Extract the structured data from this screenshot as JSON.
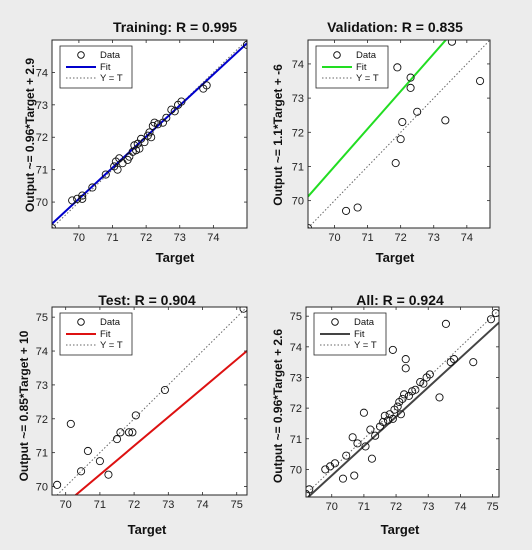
{
  "chart_data": [
    {
      "type": "scatter",
      "title": "Training:  R = 0.995",
      "xlabel": "Target",
      "ylabel": "Output ~= 0.96*Target + 2.9",
      "xlim": [
        69.2,
        75.0
      ],
      "ylim": [
        69.2,
        75.0
      ],
      "xticks": [
        "70",
        "71",
        "72",
        "73",
        "74"
      ],
      "yticks": [
        "70",
        "71",
        "72",
        "73",
        "74"
      ],
      "grid": false,
      "legend_position": "top-left",
      "legend": [
        "Data",
        "Fit",
        "Y = T"
      ],
      "fit": {
        "slope": 0.96,
        "intercept": 2.9,
        "color": "#0000cc"
      },
      "points": [
        [
          69.2,
          69.2
        ],
        [
          69.8,
          70.05
        ],
        [
          69.95,
          70.1
        ],
        [
          70.1,
          70.2
        ],
        [
          70.1,
          70.1
        ],
        [
          70.4,
          70.45
        ],
        [
          70.8,
          70.85
        ],
        [
          71.05,
          71.1
        ],
        [
          71.1,
          71.25
        ],
        [
          71.15,
          71.0
        ],
        [
          71.2,
          71.35
        ],
        [
          71.3,
          71.2
        ],
        [
          71.45,
          71.3
        ],
        [
          71.5,
          71.4
        ],
        [
          71.6,
          71.55
        ],
        [
          71.65,
          71.75
        ],
        [
          71.7,
          71.6
        ],
        [
          71.75,
          71.8
        ],
        [
          71.8,
          71.65
        ],
        [
          71.85,
          71.95
        ],
        [
          71.95,
          71.85
        ],
        [
          72.05,
          72.05
        ],
        [
          72.1,
          72.15
        ],
        [
          72.15,
          72.0
        ],
        [
          72.2,
          72.35
        ],
        [
          72.25,
          72.45
        ],
        [
          72.35,
          72.4
        ],
        [
          72.5,
          72.45
        ],
        [
          72.6,
          72.6
        ],
        [
          72.75,
          72.85
        ],
        [
          72.85,
          72.8
        ],
        [
          72.95,
          73.0
        ],
        [
          73.05,
          73.1
        ],
        [
          73.7,
          73.5
        ],
        [
          73.8,
          73.6
        ],
        [
          75.0,
          74.85
        ]
      ]
    },
    {
      "type": "scatter",
      "title": "Validation:  R = 0.835",
      "xlabel": "Target",
      "ylabel": "Output ~= 1.1*Target + -6",
      "xlim": [
        69.2,
        74.7
      ],
      "ylim": [
        69.2,
        74.7
      ],
      "xticks": [
        "70",
        "71",
        "72",
        "73",
        "74"
      ],
      "yticks": [
        "70",
        "71",
        "72",
        "73",
        "74"
      ],
      "grid": false,
      "legend_position": "top-left",
      "legend": [
        "Data",
        "Fit",
        "Y = T"
      ],
      "fit": {
        "slope": 1.1,
        "intercept": -6,
        "color": "#22dd22"
      },
      "points": [
        [
          69.2,
          69.2
        ],
        [
          70.35,
          69.7
        ],
        [
          70.7,
          69.8
        ],
        [
          71.85,
          71.1
        ],
        [
          72.0,
          71.8
        ],
        [
          72.05,
          72.3
        ],
        [
          72.3,
          73.3
        ],
        [
          72.3,
          73.6
        ],
        [
          72.5,
          72.6
        ],
        [
          71.9,
          73.9
        ],
        [
          73.35,
          72.35
        ],
        [
          73.55,
          74.65
        ],
        [
          74.4,
          73.5
        ]
      ]
    },
    {
      "type": "scatter",
      "title": "Test:  R = 0.904",
      "xlabel": "Target",
      "ylabel": "Output ~= 0.85*Target + 10",
      "xlim": [
        69.6,
        75.3
      ],
      "ylim": [
        69.75,
        75.3
      ],
      "xticks": [
        "70",
        "71",
        "72",
        "73",
        "74",
        "75"
      ],
      "yticks": [
        "70",
        "71",
        "72",
        "73",
        "74",
        "75"
      ],
      "grid": false,
      "legend_position": "top-left",
      "legend": [
        "Data",
        "Fit",
        "Y = T"
      ],
      "fit": {
        "slope": 0.85,
        "intercept": 10,
        "color": "#dd1111"
      },
      "points": [
        [
          69.75,
          70.05
        ],
        [
          70.15,
          71.85
        ],
        [
          70.45,
          70.45
        ],
        [
          70.65,
          71.05
        ],
        [
          71.0,
          70.75
        ],
        [
          71.25,
          70.35
        ],
        [
          71.5,
          71.4
        ],
        [
          71.6,
          71.6
        ],
        [
          71.85,
          71.6
        ],
        [
          71.95,
          71.6
        ],
        [
          72.05,
          72.1
        ],
        [
          72.9,
          72.85
        ],
        [
          75.2,
          75.25
        ]
      ]
    },
    {
      "type": "scatter",
      "title": "All:  R = 0.924",
      "xlabel": "Target",
      "ylabel": "Output ~= 0.96*Target + 2.6",
      "xlim": [
        69.2,
        75.2
      ],
      "ylim": [
        69.1,
        75.3
      ],
      "xticks": [
        "70",
        "71",
        "72",
        "73",
        "74",
        "75"
      ],
      "yticks": [
        "70",
        "71",
        "72",
        "73",
        "74",
        "75"
      ],
      "grid": false,
      "legend_position": "top-left",
      "legend": [
        "Data",
        "Fit",
        "Y = T"
      ],
      "fit": {
        "slope": 0.96,
        "intercept": 2.6,
        "color": "#444444"
      },
      "points": [
        [
          69.2,
          69.2
        ],
        [
          69.3,
          69.35
        ],
        [
          69.8,
          70.0
        ],
        [
          69.95,
          70.1
        ],
        [
          70.1,
          70.2
        ],
        [
          70.35,
          69.7
        ],
        [
          70.45,
          70.45
        ],
        [
          70.7,
          69.8
        ],
        [
          70.65,
          71.05
        ],
        [
          70.8,
          70.85
        ],
        [
          71.0,
          71.85
        ],
        [
          71.05,
          70.75
        ],
        [
          71.2,
          71.3
        ],
        [
          71.25,
          70.35
        ],
        [
          71.35,
          71.1
        ],
        [
          71.5,
          71.4
        ],
        [
          71.6,
          71.55
        ],
        [
          71.65,
          71.75
        ],
        [
          71.75,
          71.6
        ],
        [
          71.8,
          71.8
        ],
        [
          71.9,
          71.65
        ],
        [
          71.95,
          71.95
        ],
        [
          72.05,
          72.05
        ],
        [
          72.1,
          72.2
        ],
        [
          72.15,
          71.8
        ],
        [
          72.2,
          72.3
        ],
        [
          72.25,
          72.45
        ],
        [
          72.3,
          73.3
        ],
        [
          72.3,
          73.6
        ],
        [
          72.4,
          72.4
        ],
        [
          72.5,
          72.55
        ],
        [
          72.6,
          72.6
        ],
        [
          72.75,
          72.85
        ],
        [
          72.85,
          72.8
        ],
        [
          72.95,
          73.0
        ],
        [
          73.05,
          73.1
        ],
        [
          71.9,
          73.9
        ],
        [
          73.35,
          72.35
        ],
        [
          73.55,
          74.75
        ],
        [
          73.7,
          73.5
        ],
        [
          73.8,
          73.6
        ],
        [
          74.4,
          73.5
        ],
        [
          74.95,
          74.9
        ],
        [
          75.1,
          75.1
        ]
      ]
    }
  ]
}
